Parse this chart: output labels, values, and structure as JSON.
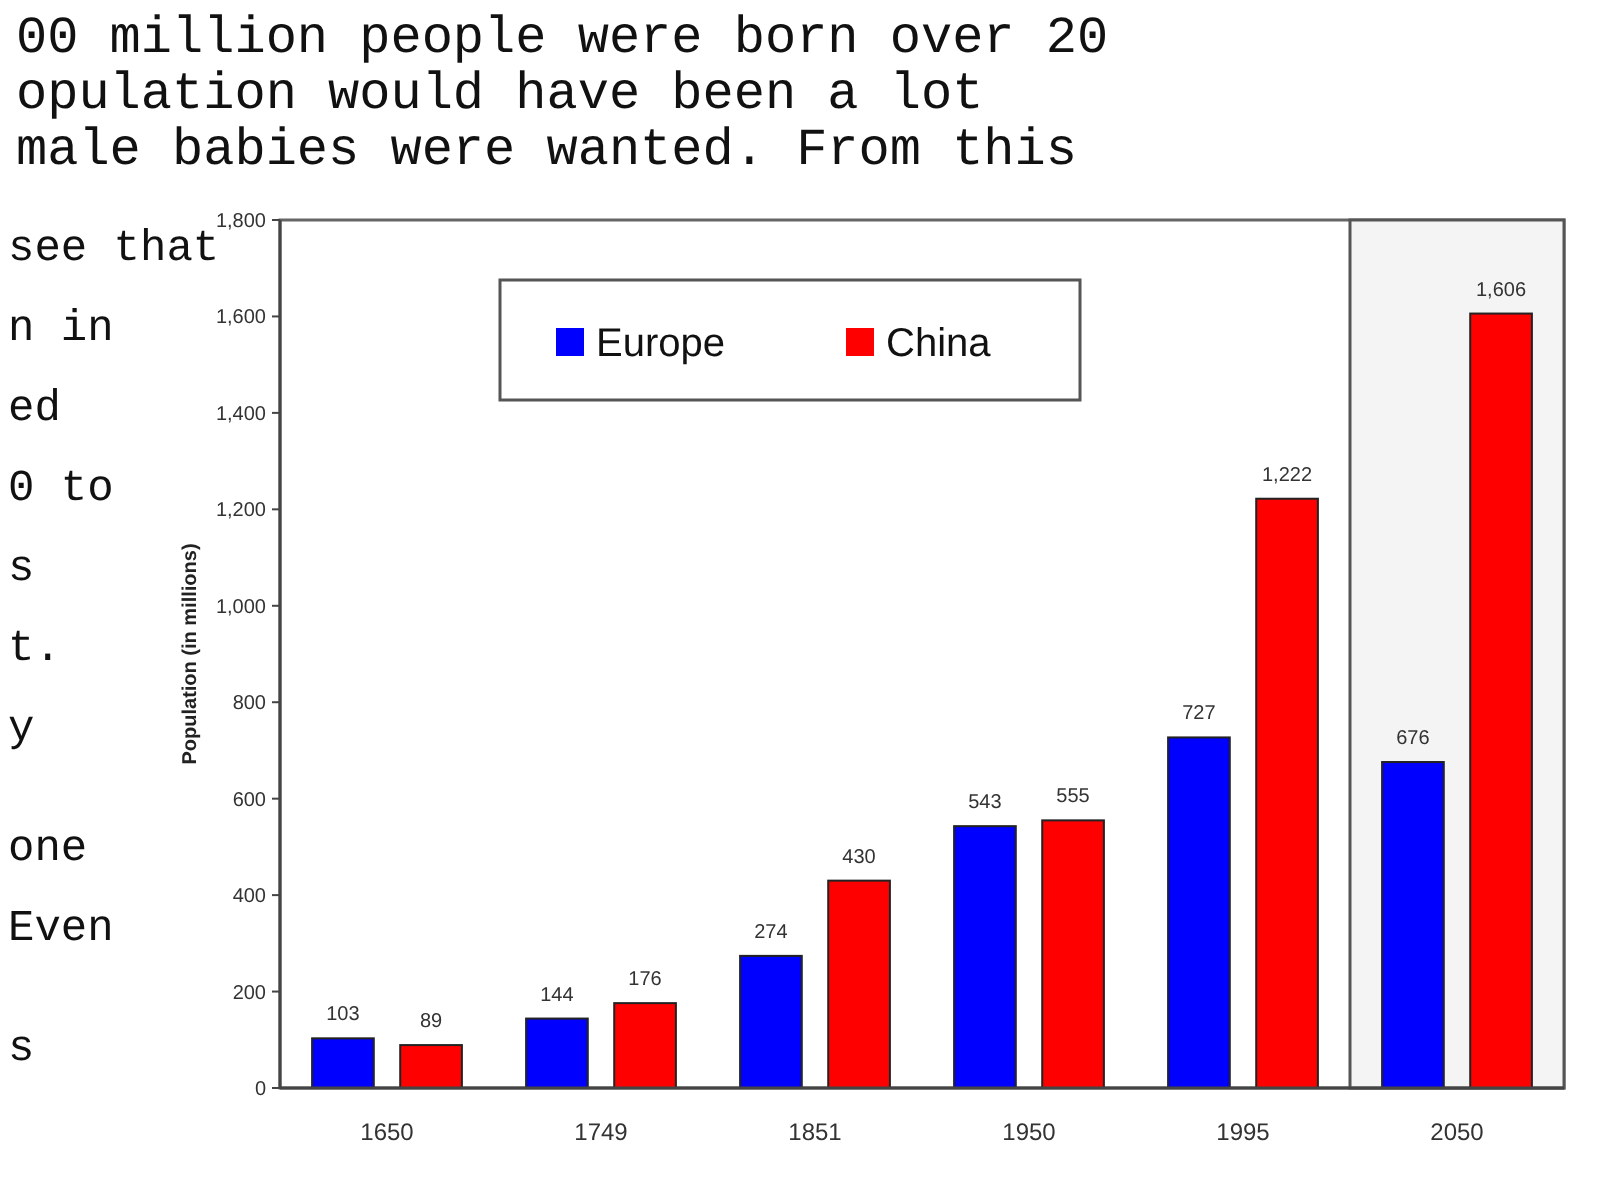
{
  "chart_data": {
    "type": "bar",
    "ylabel": "Population (in millions)",
    "categories": [
      "1650",
      "1749",
      "1851",
      "1950",
      "1995",
      "2050"
    ],
    "series": [
      {
        "name": "Europe",
        "color": "#0000ff",
        "values": [
          103,
          144,
          274,
          543,
          727,
          676
        ]
      },
      {
        "name": "China",
        "color": "#ff0000",
        "values": [
          89,
          176,
          430,
          555,
          1222,
          1606
        ]
      }
    ],
    "value_labels": [
      [
        "103",
        "144",
        "274",
        "543",
        "727",
        "676"
      ],
      [
        "89",
        "176",
        "430",
        "555",
        "1,222",
        "1,606"
      ]
    ],
    "ylim": [
      0,
      1800
    ],
    "yticks": [
      0,
      {
        "value": 200,
        "label": "200"
      },
      {
        "value": 400,
        "label": "400"
      },
      {
        "value": 600,
        "label": "600"
      },
      {
        "value": 800,
        "label": "800"
      },
      {
        "value": 1000,
        "label": "1,000"
      },
      {
        "value": 1200,
        "label": "1,200"
      },
      {
        "value": 1400,
        "label": "1,400"
      },
      {
        "value": 1600,
        "label": "1,600"
      },
      {
        "value": 1800,
        "label": "1,800"
      }
    ],
    "bands": [
      {
        "axis": "x",
        "from": "2050",
        "to": "2050",
        "color": "#f4f4f4"
      }
    ],
    "legend": "top",
    "grid": false,
    "annotations": [
      "00 million people were born over 20",
      "opulation would have been a lot",
      "male babies were wanted. From this",
      "see that",
      "n in",
      "ed",
      "0 to",
      "s",
      "t.",
      "y",
      "one",
      "Even",
      "s"
    ]
  }
}
